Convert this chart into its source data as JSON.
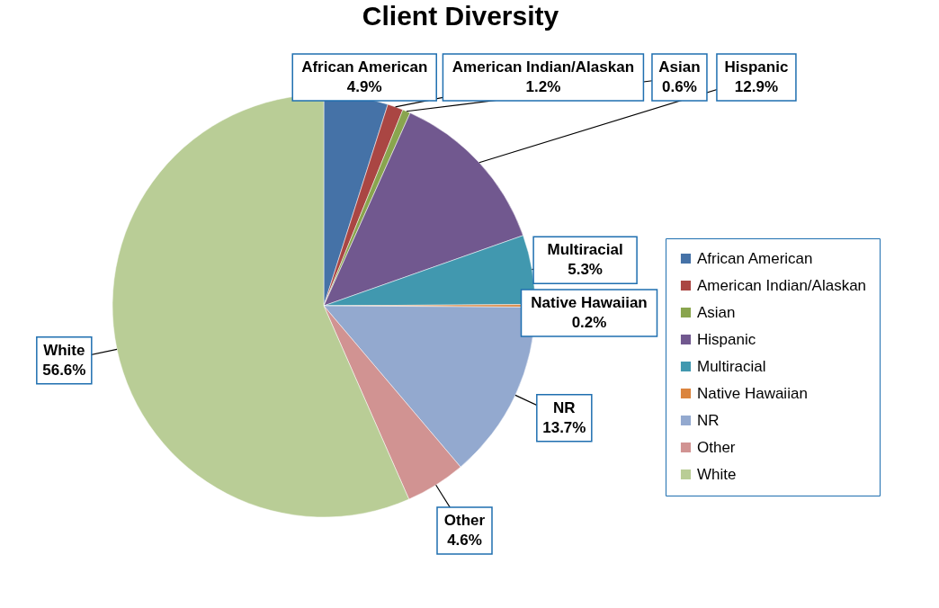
{
  "chart_data": {
    "type": "pie",
    "title": "Client Diversity",
    "categories": [
      "African American",
      "American Indian/Alaskan",
      "Asian",
      "Hispanic",
      "Multiracial",
      "Native Hawaiian",
      "NR",
      "Other",
      "White"
    ],
    "values": [
      4.9,
      1.2,
      0.6,
      12.9,
      5.3,
      0.2,
      13.7,
      4.6,
      56.6
    ],
    "value_labels": [
      "4.9%",
      "1.2%",
      "0.6%",
      "12.9%",
      "5.3%",
      "0.2%",
      "13.7%",
      "4.6%",
      "56.6%"
    ],
    "colors": [
      "#4572a7",
      "#aa4643",
      "#89a54e",
      "#71588f",
      "#4198af",
      "#db843d",
      "#93a9cf",
      "#d19392",
      "#b9cd96"
    ],
    "legend": "right"
  }
}
